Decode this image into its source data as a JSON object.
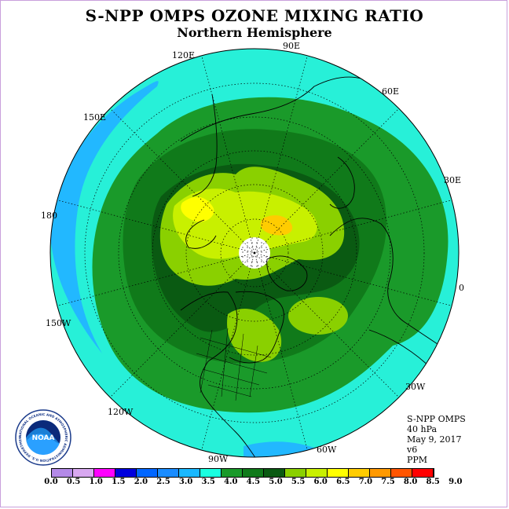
{
  "title": "S-NPP OMPS OZONE MIXING RATIO",
  "subtitle": "Northern Hemisphere",
  "lon_labels": {
    "e90": "90E",
    "e120": "120E",
    "e60": "60E",
    "e150": "150E",
    "e30": "30E",
    "l180": "180",
    "l0": "0",
    "w150": "150W",
    "w30": "30W",
    "w120": "120W",
    "w60": "60W",
    "w90": "90W"
  },
  "info": {
    "instrument": "S-NPP OMPS",
    "level": "40 hPa",
    "date": "May 9, 2017",
    "version": "v6",
    "units": "PPM"
  },
  "logo": {
    "acronym": "NOAA",
    "ring_text": "NATIONAL OCEANIC AND ATMOSPHERIC ADMINISTRATION U.S. DEPARTMENT OF COMMERCE"
  },
  "colorbar": {
    "labels": [
      "0.0",
      "0.5",
      "1.0",
      "1.5",
      "2.0",
      "2.5",
      "3.0",
      "3.5",
      "4.0",
      "4.5",
      "5.0",
      "5.5",
      "6.0",
      "6.5",
      "7.0",
      "7.5",
      "8.0",
      "8.5",
      "9.0"
    ],
    "colors": [
      "#b48ae8",
      "#d8a8f0",
      "#ff00ff",
      "#0000dd",
      "#0066ff",
      "#1a8cff",
      "#1ab8ff",
      "#1affe0",
      "#1a9a2a",
      "#107a1a",
      "#0a5a12",
      "#8ad000",
      "#c8f000",
      "#ffff00",
      "#ffcc00",
      "#ff9900",
      "#ff5500",
      "#ff0000",
      "#8b5030"
    ]
  },
  "colors": {
    "outer": "#27f0d8",
    "blue_edge": "#22b8ff",
    "green_light": "#1a9a2a",
    "green_mid": "#107a1a",
    "green_dark": "#0a5a12",
    "yellowgreen": "#8ad000",
    "lime": "#c8f000",
    "yellow": "#ffff00",
    "orange": "#ffcc00",
    "missing": "#ffffff"
  }
}
